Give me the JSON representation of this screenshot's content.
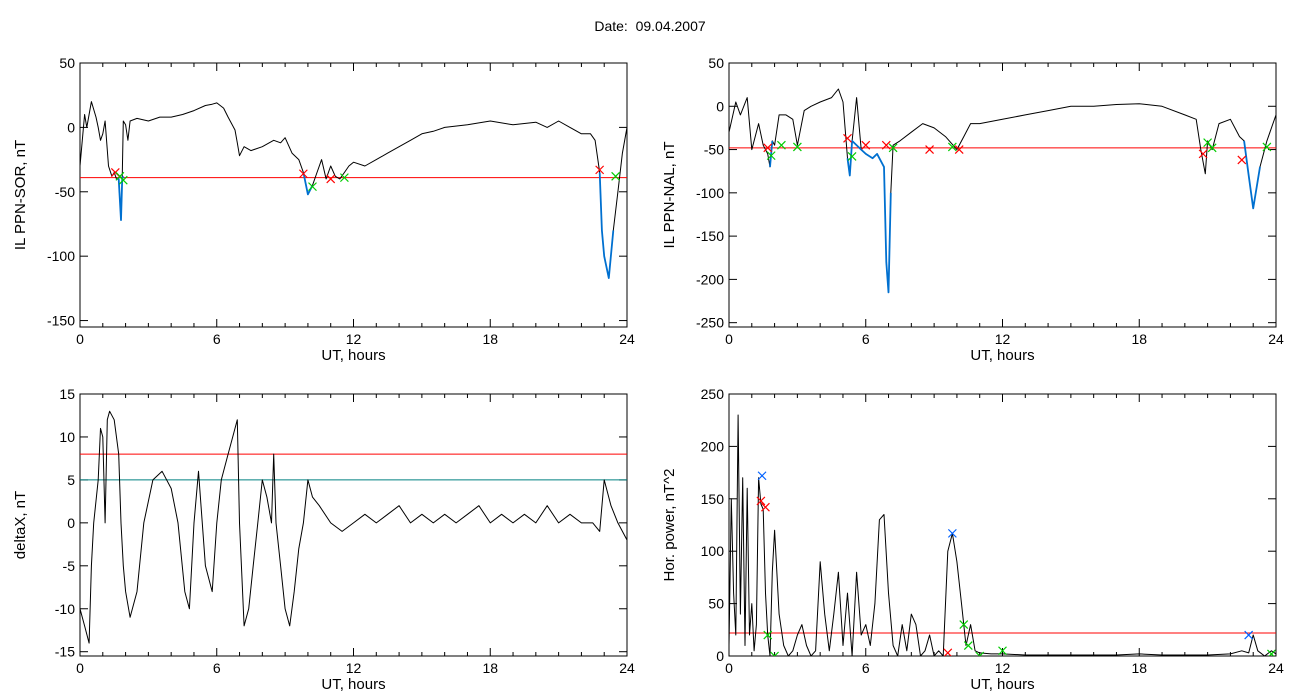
{
  "title": "Date:  09.04.2007",
  "chart_data": [
    {
      "type": "line",
      "id": "ppn-sor",
      "xlabel": "UT, hours",
      "ylabel": "IL PPN-SOR, nT",
      "xlim": [
        0,
        24
      ],
      "ylim": [
        -155,
        50
      ],
      "xticks": [
        0,
        6,
        12,
        18,
        24
      ],
      "yticks": [
        50,
        0,
        -50,
        -100,
        -150
      ],
      "grid": false,
      "series": [
        {
          "color": "#000000",
          "x": [
            0,
            0.2,
            0.3,
            0.5,
            0.7,
            0.8,
            0.9,
            1.0,
            1.1,
            1.25,
            1.4,
            1.5,
            1.6,
            1.7,
            1.8,
            1.85,
            1.9,
            2.0,
            2.1,
            2.2,
            2.5,
            3.0,
            3.5,
            4.0,
            4.5,
            5.0,
            5.5,
            5.8,
            6.0,
            6.3,
            6.5,
            6.8,
            6.9,
            7.0,
            7.2,
            7.5,
            8.0,
            8.5,
            8.8,
            9.0,
            9.3,
            9.6,
            9.8,
            10.0,
            10.2,
            10.4,
            10.6,
            10.8,
            11.0,
            11.2,
            11.4,
            11.6,
            11.8,
            12.0,
            12.5,
            13.0,
            13.5,
            14.0,
            14.5,
            15.0,
            15.5,
            16.0,
            17.0,
            18.0,
            19.0,
            20.0,
            20.5,
            21.0,
            21.5,
            22.0,
            22.4,
            22.6,
            22.8,
            22.9,
            23.0,
            23.2,
            23.4,
            23.6,
            23.8,
            24.0
          ],
          "y": [
            -30,
            10,
            0,
            20,
            8,
            0,
            -10,
            -5,
            5,
            -30,
            -38,
            -35,
            -40,
            -40,
            -72,
            -40,
            5,
            2,
            -10,
            5,
            7,
            5,
            8,
            8,
            10,
            13,
            17,
            18,
            19,
            15,
            8,
            -2,
            -12,
            -22,
            -15,
            -18,
            -15,
            -10,
            -12,
            -8,
            -20,
            -25,
            -35,
            -52,
            -45,
            -35,
            -25,
            -40,
            -30,
            -38,
            -40,
            -35,
            -30,
            -27,
            -30,
            -25,
            -20,
            -15,
            -10,
            -5,
            -3,
            0,
            2,
            5,
            2,
            4,
            0,
            5,
            0,
            -5,
            -5,
            -10,
            -35,
            -80,
            -100,
            -117,
            -80,
            -50,
            -20,
            0
          ]
        },
        {
          "color": "#0070d0",
          "x": [
            1.6,
            1.7,
            1.8,
            1.85,
            1.9,
            9.8,
            10.0,
            10.2,
            22.8,
            22.9,
            23.0,
            23.2,
            23.4
          ],
          "y": [
            -40,
            -40,
            -72,
            -40,
            -38,
            -35,
            -52,
            -45,
            -35,
            -80,
            -100,
            -117,
            -80
          ]
        }
      ],
      "hlines": [
        {
          "y": -39,
          "color": "#ff0000"
        }
      ],
      "markers": [
        {
          "x": 1.55,
          "y": -35,
          "color": "#ff0000"
        },
        {
          "x": 1.75,
          "y": -38,
          "color": "#00cc00"
        },
        {
          "x": 1.9,
          "y": -41,
          "color": "#00cc00"
        },
        {
          "x": 9.8,
          "y": -36,
          "color": "#ff0000"
        },
        {
          "x": 10.2,
          "y": -46,
          "color": "#00cc00"
        },
        {
          "x": 11.0,
          "y": -40,
          "color": "#ff0000"
        },
        {
          "x": 11.6,
          "y": -39,
          "color": "#00cc00"
        },
        {
          "x": 22.8,
          "y": -33,
          "color": "#ff0000"
        },
        {
          "x": 23.5,
          "y": -38,
          "color": "#00cc00"
        }
      ]
    },
    {
      "type": "line",
      "id": "ppn-nal",
      "xlabel": "UT, hours",
      "ylabel": "IL PPN-NAL, nT",
      "xlim": [
        0,
        24
      ],
      "ylim": [
        -255,
        50
      ],
      "xticks": [
        0,
        6,
        12,
        18,
        24
      ],
      "yticks": [
        50,
        0,
        -50,
        -100,
        -150,
        -200,
        -250
      ],
      "grid": false,
      "series": [
        {
          "color": "#000000",
          "x": [
            0,
            0.3,
            0.5,
            0.8,
            1.0,
            1.3,
            1.5,
            1.7,
            1.8,
            1.9,
            2.0,
            2.2,
            2.5,
            2.8,
            3.0,
            3.3,
            3.6,
            4.0,
            4.5,
            4.8,
            5.0,
            5.2,
            5.3,
            5.4,
            5.6,
            5.8,
            6.0,
            6.3,
            6.5,
            6.8,
            6.9,
            7.0,
            7.1,
            7.2,
            7.5,
            8.0,
            8.5,
            9.0,
            9.5,
            10.0,
            10.3,
            10.6,
            11.0,
            12.0,
            13.0,
            14.0,
            15.0,
            16.0,
            17.0,
            18.0,
            19.0,
            20.0,
            20.5,
            20.7,
            20.9,
            21.0,
            21.2,
            21.5,
            22.0,
            22.4,
            22.6,
            22.8,
            23.0,
            23.3,
            23.6,
            24.0
          ],
          "y": [
            -30,
            5,
            -10,
            10,
            -50,
            -20,
            -45,
            -55,
            -70,
            -40,
            -45,
            -10,
            -10,
            -15,
            -45,
            -5,
            0,
            5,
            10,
            20,
            5,
            -60,
            -80,
            -40,
            10,
            -50,
            -55,
            -60,
            -55,
            -70,
            -180,
            -215,
            -100,
            -45,
            -40,
            -30,
            -20,
            -25,
            -35,
            -50,
            -35,
            -20,
            -20,
            -15,
            -10,
            -5,
            0,
            0,
            2,
            3,
            0,
            -10,
            -15,
            -50,
            -78,
            -40,
            -50,
            -20,
            -15,
            -35,
            -40,
            -80,
            -118,
            -70,
            -40,
            -10
          ]
        },
        {
          "color": "#0070d0",
          "x": [
            1.8,
            1.9,
            5.2,
            5.3,
            5.4,
            5.8,
            6.0,
            6.3,
            6.5,
            6.8,
            6.9,
            7.0,
            7.1,
            20.9,
            22.6,
            22.8,
            23.0,
            23.3
          ],
          "y": [
            -70,
            -40,
            -60,
            -80,
            -40,
            -50,
            -55,
            -60,
            -55,
            -70,
            -180,
            -215,
            -100,
            -78,
            -40,
            -80,
            -118,
            -70
          ]
        }
      ],
      "hlines": [
        {
          "y": -48,
          "color": "#ff0000"
        }
      ],
      "markers": [
        {
          "x": 1.7,
          "y": -48,
          "color": "#ff0000"
        },
        {
          "x": 1.85,
          "y": -57,
          "color": "#00cc00"
        },
        {
          "x": 2.3,
          "y": -45,
          "color": "#00cc00"
        },
        {
          "x": 3.0,
          "y": -47,
          "color": "#00cc00"
        },
        {
          "x": 5.2,
          "y": -37,
          "color": "#ff0000"
        },
        {
          "x": 5.4,
          "y": -58,
          "color": "#00cc00"
        },
        {
          "x": 6.0,
          "y": -45,
          "color": "#ff0000"
        },
        {
          "x": 6.9,
          "y": -45,
          "color": "#ff0000"
        },
        {
          "x": 7.2,
          "y": -48,
          "color": "#00cc00"
        },
        {
          "x": 8.8,
          "y": -50,
          "color": "#ff0000"
        },
        {
          "x": 9.8,
          "y": -47,
          "color": "#00cc00"
        },
        {
          "x": 10.1,
          "y": -50,
          "color": "#ff0000"
        },
        {
          "x": 20.8,
          "y": -55,
          "color": "#ff0000"
        },
        {
          "x": 21.0,
          "y": -42,
          "color": "#00cc00"
        },
        {
          "x": 21.2,
          "y": -48,
          "color": "#00cc00"
        },
        {
          "x": 22.5,
          "y": -62,
          "color": "#ff0000"
        },
        {
          "x": 23.6,
          "y": -47,
          "color": "#00cc00"
        }
      ]
    },
    {
      "type": "line",
      "id": "deltax",
      "xlabel": "UT, hours",
      "ylabel": "deltaX, nT",
      "xlim": [
        0,
        24
      ],
      "ylim": [
        -15.5,
        15
      ],
      "xticks": [
        0,
        6,
        12,
        18,
        24
      ],
      "yticks": [
        15,
        10,
        5,
        0,
        -5,
        -10,
        -15
      ],
      "grid": false,
      "series": [
        {
          "color": "#000000",
          "x": [
            0,
            0.2,
            0.4,
            0.5,
            0.6,
            0.8,
            0.9,
            1.0,
            1.1,
            1.2,
            1.3,
            1.5,
            1.7,
            1.8,
            1.9,
            2.0,
            2.2,
            2.5,
            2.8,
            3.2,
            3.6,
            4.0,
            4.3,
            4.6,
            4.8,
            5.0,
            5.2,
            5.5,
            5.8,
            6.0,
            6.2,
            6.5,
            6.7,
            6.9,
            7.0,
            7.2,
            7.4,
            7.6,
            7.8,
            8.0,
            8.2,
            8.4,
            8.5,
            8.6,
            8.8,
            9.0,
            9.2,
            9.4,
            9.6,
            9.8,
            10.0,
            10.2,
            10.5,
            11.0,
            11.5,
            12.0,
            12.5,
            13.0,
            13.5,
            14.0,
            14.5,
            15.0,
            15.5,
            16.0,
            16.5,
            17.0,
            17.5,
            18.0,
            18.5,
            19.0,
            19.5,
            20.0,
            20.5,
            21.0,
            21.5,
            22.0,
            22.5,
            22.8,
            23.0,
            23.3,
            23.6,
            24.0
          ],
          "y": [
            -10,
            -12,
            -14,
            -5,
            0,
            5,
            11,
            10,
            0,
            12,
            13,
            12,
            8,
            0,
            -5,
            -8,
            -11,
            -8,
            0,
            5,
            6,
            4,
            0,
            -8,
            -10,
            0,
            6,
            -5,
            -8,
            0,
            5,
            8,
            10,
            12,
            0,
            -12,
            -10,
            -5,
            0,
            5,
            3,
            0,
            8,
            0,
            -5,
            -10,
            -12,
            -8,
            -3,
            0,
            5,
            3,
            2,
            0,
            -1,
            0,
            1,
            0,
            1,
            2,
            0,
            1,
            0,
            1,
            0,
            1,
            2,
            0,
            1,
            0,
            1,
            0,
            2,
            0,
            1,
            0,
            0,
            -1,
            5,
            2,
            0,
            -2
          ]
        }
      ],
      "hlines": [
        {
          "y": 8,
          "color": "#ff0000"
        },
        {
          "y": 5,
          "color": "#008080"
        }
      ],
      "markers": []
    },
    {
      "type": "line",
      "id": "hor-power",
      "xlabel": "UT, hours",
      "ylabel": "Hor. power, nT^2",
      "xlim": [
        0,
        24
      ],
      "ylim": [
        0,
        250
      ],
      "xticks": [
        0,
        6,
        12,
        18,
        24
      ],
      "yticks": [
        250,
        200,
        150,
        100,
        50,
        0
      ],
      "grid": false,
      "series": [
        {
          "color": "#000000",
          "x": [
            0,
            0.1,
            0.2,
            0.3,
            0.4,
            0.5,
            0.6,
            0.7,
            0.8,
            0.9,
            1.0,
            1.1,
            1.2,
            1.3,
            1.4,
            1.5,
            1.6,
            1.7,
            1.8,
            1.9,
            2.0,
            2.2,
            2.4,
            2.6,
            2.8,
            3.0,
            3.2,
            3.4,
            3.6,
            3.8,
            4.0,
            4.2,
            4.4,
            4.6,
            4.8,
            5.0,
            5.2,
            5.4,
            5.6,
            5.8,
            6.0,
            6.2,
            6.4,
            6.6,
            6.8,
            7.0,
            7.2,
            7.4,
            7.6,
            7.8,
            8.0,
            8.2,
            8.4,
            8.6,
            8.8,
            9.0,
            9.2,
            9.4,
            9.6,
            9.8,
            10.0,
            10.2,
            10.4,
            10.6,
            10.8,
            11.0,
            11.5,
            12.0,
            13.0,
            14.0,
            15.0,
            16.0,
            17.0,
            18.0,
            19.0,
            20.0,
            21.0,
            22.0,
            22.5,
            22.8,
            23.0,
            23.2,
            23.5,
            23.8,
            24.0
          ],
          "y": [
            10,
            150,
            60,
            20,
            230,
            40,
            170,
            10,
            160,
            20,
            50,
            5,
            30,
            170,
            145,
            140,
            60,
            20,
            0,
            80,
            120,
            40,
            10,
            0,
            5,
            20,
            30,
            10,
            0,
            5,
            90,
            40,
            5,
            40,
            80,
            10,
            60,
            0,
            80,
            20,
            30,
            10,
            50,
            130,
            135,
            60,
            10,
            0,
            30,
            5,
            40,
            30,
            0,
            5,
            20,
            0,
            5,
            0,
            100,
            117,
            90,
            50,
            10,
            30,
            5,
            3,
            2,
            2,
            1,
            1,
            1,
            1,
            1,
            2,
            1,
            1,
            1,
            2,
            5,
            3,
            20,
            5,
            0,
            5,
            2
          ]
        }
      ],
      "hlines": [
        {
          "y": 22,
          "color": "#ff0000"
        }
      ],
      "markers": [
        {
          "x": 1.45,
          "y": 172,
          "color": "#0060ff"
        },
        {
          "x": 1.4,
          "y": 148,
          "color": "#ff0000"
        },
        {
          "x": 1.6,
          "y": 142,
          "color": "#ff0000"
        },
        {
          "x": 1.7,
          "y": 20,
          "color": "#00cc00"
        },
        {
          "x": 2.0,
          "y": 0,
          "color": "#00cc00"
        },
        {
          "x": 9.8,
          "y": 117,
          "color": "#0060ff"
        },
        {
          "x": 9.6,
          "y": 3,
          "color": "#ff0000"
        },
        {
          "x": 10.3,
          "y": 30,
          "color": "#00cc00"
        },
        {
          "x": 10.5,
          "y": 10,
          "color": "#00cc00"
        },
        {
          "x": 11.0,
          "y": 0,
          "color": "#00cc00"
        },
        {
          "x": 12.0,
          "y": 5,
          "color": "#00cc00"
        },
        {
          "x": 22.8,
          "y": 20,
          "color": "#0060ff"
        },
        {
          "x": 23.8,
          "y": 2,
          "color": "#00cc00"
        }
      ]
    }
  ]
}
